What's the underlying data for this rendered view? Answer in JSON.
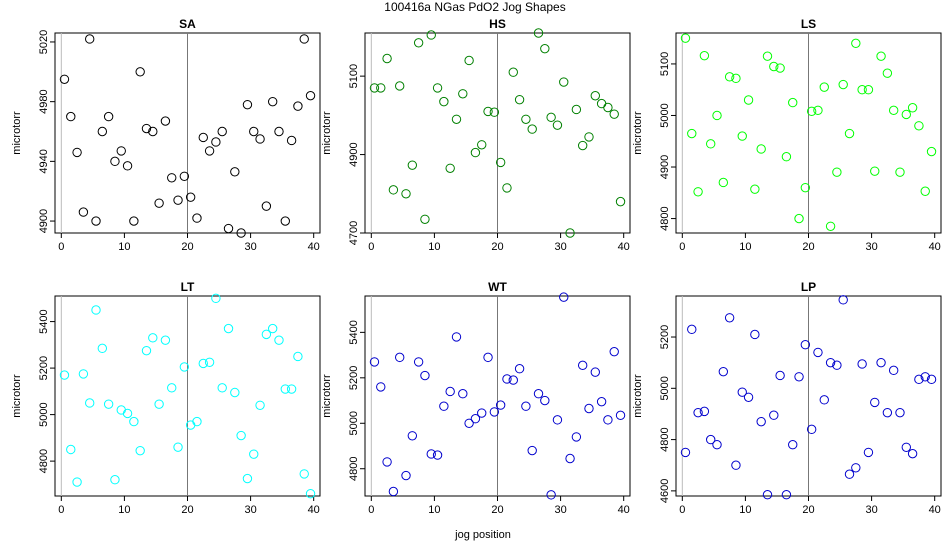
{
  "figure": {
    "title": "100416a   NGas PdO2 Jog Shapes",
    "xlabel": "jog position"
  },
  "chart_data": [
    {
      "type": "scatter",
      "title": "SA",
      "ylabel": "microtorr",
      "color": "#000000",
      "xlim": [
        -1,
        41
      ],
      "ylim": [
        4892,
        5026
      ],
      "xticks": [
        0,
        10,
        20,
        30,
        40
      ],
      "yticks": [
        4900,
        4940,
        4980,
        5020
      ],
      "vline": 20,
      "points": [
        [
          0.5,
          4995
        ],
        [
          1.5,
          4970
        ],
        [
          2.5,
          4946
        ],
        [
          3.5,
          4906
        ],
        [
          4.5,
          5022
        ],
        [
          5.5,
          4900
        ],
        [
          6.5,
          4960
        ],
        [
          7.5,
          4970
        ],
        [
          8.5,
          4940
        ],
        [
          9.5,
          4947
        ],
        [
          10.5,
          4937
        ],
        [
          11.5,
          4900
        ],
        [
          12.5,
          5000
        ],
        [
          13.5,
          4962
        ],
        [
          14.5,
          4960
        ],
        [
          15.5,
          4912
        ],
        [
          16.5,
          4967
        ],
        [
          17.5,
          4929
        ],
        [
          18.5,
          4914
        ],
        [
          19.5,
          4930
        ],
        [
          20.5,
          4916
        ],
        [
          21.5,
          4902
        ],
        [
          22.5,
          4956
        ],
        [
          23.5,
          4947
        ],
        [
          24.5,
          4953
        ],
        [
          25.5,
          4960
        ],
        [
          26.5,
          4895
        ],
        [
          27.5,
          4933
        ],
        [
          28.5,
          4892
        ],
        [
          29.5,
          4978
        ],
        [
          30.5,
          4960
        ],
        [
          31.5,
          4955
        ],
        [
          32.5,
          4910
        ],
        [
          33.5,
          4980
        ],
        [
          34.5,
          4960
        ],
        [
          35.5,
          4900
        ],
        [
          36.5,
          4954
        ],
        [
          37.5,
          4977
        ],
        [
          38.5,
          5022
        ],
        [
          39.5,
          4984
        ]
      ]
    },
    {
      "type": "scatter",
      "title": "HS",
      "ylabel": "microtorr",
      "color": "#008000",
      "xlim": [
        -1,
        41
      ],
      "ylim": [
        4700,
        5210
      ],
      "xticks": [
        0,
        10,
        20,
        30,
        40
      ],
      "yticks": [
        4700,
        4900,
        5100
      ],
      "vline": 20,
      "points": [
        [
          0.5,
          5070
        ],
        [
          1.5,
          5070
        ],
        [
          2.5,
          5145
        ],
        [
          3.5,
          4810
        ],
        [
          4.5,
          5075
        ],
        [
          5.5,
          4800
        ],
        [
          6.5,
          4873
        ],
        [
          7.5,
          5185
        ],
        [
          8.5,
          4735
        ],
        [
          9.5,
          5205
        ],
        [
          10.5,
          5070
        ],
        [
          11.5,
          5035
        ],
        [
          12.5,
          4865
        ],
        [
          13.5,
          4990
        ],
        [
          14.5,
          5055
        ],
        [
          15.5,
          5140
        ],
        [
          16.5,
          4905
        ],
        [
          17.5,
          4925
        ],
        [
          18.5,
          5010
        ],
        [
          19.5,
          5008
        ],
        [
          20.5,
          4880
        ],
        [
          21.5,
          4815
        ],
        [
          22.5,
          5110
        ],
        [
          23.5,
          5040
        ],
        [
          24.5,
          4990
        ],
        [
          25.5,
          4965
        ],
        [
          26.5,
          5210
        ],
        [
          27.5,
          5170
        ],
        [
          28.5,
          4995
        ],
        [
          29.5,
          4975
        ],
        [
          30.5,
          5085
        ],
        [
          31.5,
          4700
        ],
        [
          32.5,
          5015
        ],
        [
          33.5,
          4923
        ],
        [
          34.5,
          4945
        ],
        [
          35.5,
          5050
        ],
        [
          36.5,
          5030
        ],
        [
          37.5,
          5020
        ],
        [
          38.5,
          5003
        ],
        [
          39.5,
          4780
        ]
      ]
    },
    {
      "type": "scatter",
      "title": "LS",
      "ylabel": "microtorr",
      "color": "#00ff00",
      "xlim": [
        -1,
        41
      ],
      "ylim": [
        4772,
        5160
      ],
      "xticks": [
        0,
        10,
        20,
        30,
        40
      ],
      "yticks": [
        4800,
        4900,
        5000,
        5100
      ],
      "vline": 20,
      "points": [
        [
          0.5,
          5150
        ],
        [
          1.5,
          4965
        ],
        [
          2.5,
          4852
        ],
        [
          3.5,
          5116
        ],
        [
          4.5,
          4945
        ],
        [
          5.5,
          5000
        ],
        [
          6.5,
          4870
        ],
        [
          7.5,
          5075
        ],
        [
          8.5,
          5072
        ],
        [
          9.5,
          4960
        ],
        [
          10.5,
          5030
        ],
        [
          11.5,
          4857
        ],
        [
          12.5,
          4935
        ],
        [
          13.5,
          5115
        ],
        [
          14.5,
          5095
        ],
        [
          15.5,
          5092
        ],
        [
          16.5,
          4920
        ],
        [
          17.5,
          5025
        ],
        [
          18.5,
          4800
        ],
        [
          19.5,
          4860
        ],
        [
          20.5,
          5008
        ],
        [
          21.5,
          5010
        ],
        [
          22.5,
          5055
        ],
        [
          23.5,
          4785
        ],
        [
          24.5,
          4890
        ],
        [
          25.5,
          5060
        ],
        [
          26.5,
          4965
        ],
        [
          27.5,
          5140
        ],
        [
          28.5,
          5050
        ],
        [
          29.5,
          5050
        ],
        [
          30.5,
          4892
        ],
        [
          31.5,
          5115
        ],
        [
          32.5,
          5082
        ],
        [
          33.5,
          5010
        ],
        [
          34.5,
          4890
        ],
        [
          35.5,
          5002
        ],
        [
          36.5,
          5015
        ],
        [
          37.5,
          4980
        ],
        [
          38.5,
          4853
        ],
        [
          39.5,
          4930
        ]
      ]
    },
    {
      "type": "scatter",
      "title": "LT",
      "ylabel": "microtorr",
      "color": "#00ffff",
      "xlim": [
        -1,
        41
      ],
      "ylim": [
        4650,
        5510
      ],
      "xticks": [
        0,
        10,
        20,
        30,
        40
      ],
      "yticks": [
        4800,
        5000,
        5200,
        5400
      ],
      "vline": 20,
      "points": [
        [
          0.5,
          5170
        ],
        [
          1.5,
          4850
        ],
        [
          2.5,
          4710
        ],
        [
          3.5,
          5175
        ],
        [
          4.5,
          5050
        ],
        [
          5.5,
          5450
        ],
        [
          6.5,
          5285
        ],
        [
          7.5,
          5045
        ],
        [
          8.5,
          4720
        ],
        [
          9.5,
          5020
        ],
        [
          10.5,
          5005
        ],
        [
          11.5,
          4970
        ],
        [
          12.5,
          4845
        ],
        [
          13.5,
          5275
        ],
        [
          14.5,
          5330
        ],
        [
          15.5,
          5045
        ],
        [
          16.5,
          5320
        ],
        [
          17.5,
          5115
        ],
        [
          18.5,
          4860
        ],
        [
          19.5,
          5205
        ],
        [
          20.5,
          4955
        ],
        [
          21.5,
          4970
        ],
        [
          22.5,
          5220
        ],
        [
          23.5,
          5225
        ],
        [
          24.5,
          5500
        ],
        [
          25.5,
          5115
        ],
        [
          26.5,
          5370
        ],
        [
          27.5,
          5095
        ],
        [
          28.5,
          4910
        ],
        [
          29.5,
          4725
        ],
        [
          30.5,
          4830
        ],
        [
          31.5,
          5040
        ],
        [
          32.5,
          5345
        ],
        [
          33.5,
          5370
        ],
        [
          34.5,
          5320
        ],
        [
          35.5,
          5110
        ],
        [
          36.5,
          5110
        ],
        [
          37.5,
          5250
        ],
        [
          38.5,
          4745
        ],
        [
          39.5,
          4660
        ]
      ]
    },
    {
      "type": "scatter",
      "title": "WT",
      "ylabel": "microtorr",
      "color": "#0000cd",
      "xlim": [
        -1,
        41
      ],
      "ylim": [
        4680,
        5560
      ],
      "xticks": [
        0,
        10,
        20,
        30,
        40
      ],
      "yticks": [
        4800,
        5000,
        5200,
        5400
      ],
      "vline": 20,
      "points": [
        [
          0.5,
          5270
        ],
        [
          1.5,
          5160
        ],
        [
          2.5,
          4830
        ],
        [
          3.5,
          4700
        ],
        [
          4.5,
          5290
        ],
        [
          5.5,
          4770
        ],
        [
          6.5,
          4945
        ],
        [
          7.5,
          5270
        ],
        [
          8.5,
          5210
        ],
        [
          9.5,
          4865
        ],
        [
          10.5,
          4860
        ],
        [
          11.5,
          5075
        ],
        [
          12.5,
          5140
        ],
        [
          13.5,
          5380
        ],
        [
          14.5,
          5130
        ],
        [
          15.5,
          5000
        ],
        [
          16.5,
          5020
        ],
        [
          17.5,
          5045
        ],
        [
          18.5,
          5290
        ],
        [
          19.5,
          5050
        ],
        [
          20.5,
          5080
        ],
        [
          21.5,
          5195
        ],
        [
          22.5,
          5190
        ],
        [
          23.5,
          5240
        ],
        [
          24.5,
          5075
        ],
        [
          25.5,
          4880
        ],
        [
          26.5,
          5130
        ],
        [
          27.5,
          5100
        ],
        [
          28.5,
          4685
        ],
        [
          29.5,
          5015
        ],
        [
          30.5,
          5555
        ],
        [
          31.5,
          4845
        ],
        [
          32.5,
          4940
        ],
        [
          33.5,
          5255
        ],
        [
          34.5,
          5065
        ],
        [
          35.5,
          5225
        ],
        [
          36.5,
          5095
        ],
        [
          37.5,
          5015
        ],
        [
          38.5,
          5315
        ],
        [
          39.5,
          5035
        ]
      ]
    },
    {
      "type": "scatter",
      "title": "LP",
      "ylabel": "microtorr",
      "color": "#0000cd",
      "xlim": [
        -1,
        41
      ],
      "ylim": [
        4580,
        5360
      ],
      "xticks": [
        0,
        10,
        20,
        30,
        40
      ],
      "yticks": [
        4600,
        4800,
        5000,
        5200
      ],
      "vline": 20,
      "points": [
        [
          0.5,
          4750
        ],
        [
          1.5,
          5230
        ],
        [
          2.5,
          4905
        ],
        [
          3.5,
          4910
        ],
        [
          4.5,
          4800
        ],
        [
          5.5,
          4780
        ],
        [
          6.5,
          5065
        ],
        [
          7.5,
          5275
        ],
        [
          8.5,
          4700
        ],
        [
          9.5,
          4985
        ],
        [
          10.5,
          4965
        ],
        [
          11.5,
          5210
        ],
        [
          12.5,
          4870
        ],
        [
          13.5,
          4585
        ],
        [
          14.5,
          4895
        ],
        [
          15.5,
          5050
        ],
        [
          16.5,
          4585
        ],
        [
          17.5,
          4780
        ],
        [
          18.5,
          5045
        ],
        [
          19.5,
          5170
        ],
        [
          20.5,
          4840
        ],
        [
          21.5,
          5140
        ],
        [
          22.5,
          4955
        ],
        [
          23.5,
          5100
        ],
        [
          24.5,
          5090
        ],
        [
          25.5,
          5345
        ],
        [
          26.5,
          4665
        ],
        [
          27.5,
          4690
        ],
        [
          28.5,
          5095
        ],
        [
          29.5,
          4750
        ],
        [
          30.5,
          4945
        ],
        [
          31.5,
          5100
        ],
        [
          32.5,
          4905
        ],
        [
          33.5,
          5070
        ],
        [
          34.5,
          4905
        ],
        [
          35.5,
          4770
        ],
        [
          36.5,
          4745
        ],
        [
          37.5,
          5035
        ],
        [
          38.5,
          5045
        ],
        [
          39.5,
          5035
        ]
      ]
    }
  ]
}
